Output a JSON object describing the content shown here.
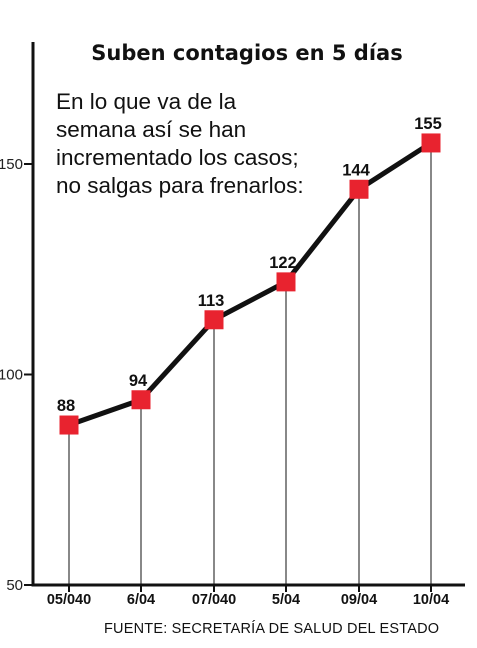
{
  "chart_data": {
    "type": "line",
    "title": "Suben contagios en 5 días",
    "subtitle": "En lo que va de la semana así se han incrementado los casos; no salgas para frenarlos:",
    "categories": [
      "05/040",
      "6/04",
      "07/040",
      "5/04",
      "09/04",
      "10/04"
    ],
    "values": [
      88,
      94,
      113,
      122,
      144,
      155
    ],
    "yticks": [
      "50",
      "100",
      "150"
    ],
    "ylim": [
      50,
      175
    ],
    "grid": false,
    "colors": {
      "line": "#111111",
      "marker": "#e8232f",
      "droplines": "#111111"
    }
  },
  "source": "FUENTE: SECRETARÍA DE SALUD DEL ESTADO"
}
